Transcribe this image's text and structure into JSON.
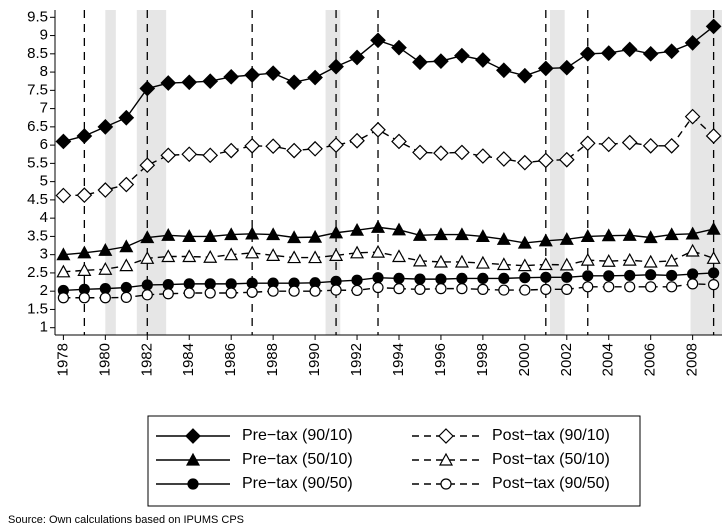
{
  "chart_data": {
    "type": "line",
    "note": "Source: Own calculations based on IPUMS CPS",
    "x": [
      1978,
      1979,
      1980,
      1981,
      1982,
      1983,
      1984,
      1985,
      1986,
      1987,
      1988,
      1989,
      1990,
      1991,
      1992,
      1993,
      1994,
      1995,
      1996,
      1997,
      1998,
      1999,
      2000,
      2001,
      2002,
      2003,
      2004,
      2005,
      2006,
      2007,
      2008,
      2009
    ],
    "xlim": [
      1977.6,
      2009.4
    ],
    "xticks": [
      1978,
      1980,
      1982,
      1984,
      1986,
      1988,
      1990,
      1992,
      1994,
      1996,
      1998,
      2000,
      2002,
      2004,
      2006,
      2008
    ],
    "ylim": [
      0.8,
      9.7
    ],
    "yticks": [
      1,
      1.5,
      2,
      2.5,
      3,
      3.5,
      4,
      4.5,
      5,
      5.5,
      6,
      6.5,
      7,
      7.5,
      8,
      8.5,
      9,
      9.5
    ],
    "shaded_periods": [
      [
        1980.0,
        1980.5
      ],
      [
        1981.5,
        1982.9
      ],
      [
        1990.5,
        1991.2
      ],
      [
        2001.2,
        2001.9
      ],
      [
        2007.9,
        2009.4
      ]
    ],
    "dashed_years": [
      1979,
      1982,
      1987,
      1991,
      1993,
      2001,
      2003,
      2009
    ],
    "series": [
      {
        "name": "Pre−tax (90/10)",
        "color": "#000000",
        "marker": "diamond",
        "filled": true,
        "dashed": false,
        "values": [
          6.1,
          6.25,
          6.5,
          6.75,
          7.55,
          7.7,
          7.72,
          7.75,
          7.87,
          7.92,
          7.97,
          7.72,
          7.85,
          8.15,
          8.4,
          8.87,
          8.67,
          8.27,
          8.3,
          8.45,
          8.33,
          8.05,
          7.9,
          8.1,
          8.12,
          8.5,
          8.52,
          8.62,
          8.5,
          8.57,
          8.8,
          9.25
        ]
      },
      {
        "name": "Post−tax (90/10)",
        "color": "#000000",
        "marker": "diamond",
        "filled": false,
        "dashed": true,
        "values": [
          4.62,
          4.63,
          4.77,
          4.92,
          5.45,
          5.72,
          5.75,
          5.72,
          5.85,
          5.98,
          5.97,
          5.85,
          5.9,
          6.0,
          6.12,
          6.42,
          6.1,
          5.8,
          5.78,
          5.8,
          5.7,
          5.62,
          5.52,
          5.58,
          5.6,
          6.05,
          6.02,
          6.07,
          5.98,
          5.98,
          6.78,
          6.25
        ]
      },
      {
        "name": "Pre−tax (50/10)",
        "color": "#000000",
        "marker": "triangle",
        "filled": true,
        "dashed": false,
        "values": [
          3.0,
          3.05,
          3.12,
          3.22,
          3.47,
          3.53,
          3.5,
          3.5,
          3.55,
          3.57,
          3.55,
          3.47,
          3.48,
          3.6,
          3.67,
          3.75,
          3.68,
          3.53,
          3.55,
          3.55,
          3.5,
          3.42,
          3.32,
          3.38,
          3.42,
          3.5,
          3.52,
          3.53,
          3.47,
          3.55,
          3.57,
          3.7
        ]
      },
      {
        "name": "Post−tax (50/10)",
        "color": "#000000",
        "marker": "triangle",
        "filled": false,
        "dashed": true,
        "values": [
          2.53,
          2.57,
          2.6,
          2.7,
          2.9,
          2.95,
          2.95,
          2.93,
          3.0,
          3.05,
          2.98,
          2.92,
          2.92,
          2.98,
          3.05,
          3.07,
          2.95,
          2.83,
          2.8,
          2.8,
          2.77,
          2.73,
          2.7,
          2.73,
          2.72,
          2.85,
          2.82,
          2.85,
          2.8,
          2.83,
          3.1,
          2.9
        ]
      },
      {
        "name": "Pre−tax (90/50)",
        "color": "#000000",
        "marker": "circle",
        "filled": true,
        "dashed": false,
        "values": [
          2.02,
          2.05,
          2.07,
          2.1,
          2.17,
          2.18,
          2.2,
          2.2,
          2.2,
          2.22,
          2.22,
          2.22,
          2.23,
          2.27,
          2.3,
          2.37,
          2.35,
          2.33,
          2.33,
          2.35,
          2.35,
          2.35,
          2.37,
          2.38,
          2.38,
          2.42,
          2.42,
          2.43,
          2.45,
          2.43,
          2.47,
          2.5
        ]
      },
      {
        "name": "Post−tax (90/50)",
        "color": "#000000",
        "marker": "circle",
        "filled": false,
        "dashed": true,
        "values": [
          1.82,
          1.82,
          1.82,
          1.83,
          1.9,
          1.93,
          1.95,
          1.95,
          1.95,
          1.97,
          2.0,
          2.0,
          2.0,
          2.03,
          2.02,
          2.1,
          2.07,
          2.05,
          2.07,
          2.07,
          2.05,
          2.03,
          2.03,
          2.05,
          2.05,
          2.12,
          2.12,
          2.12,
          2.12,
          2.12,
          2.2,
          2.18
        ]
      }
    ]
  }
}
